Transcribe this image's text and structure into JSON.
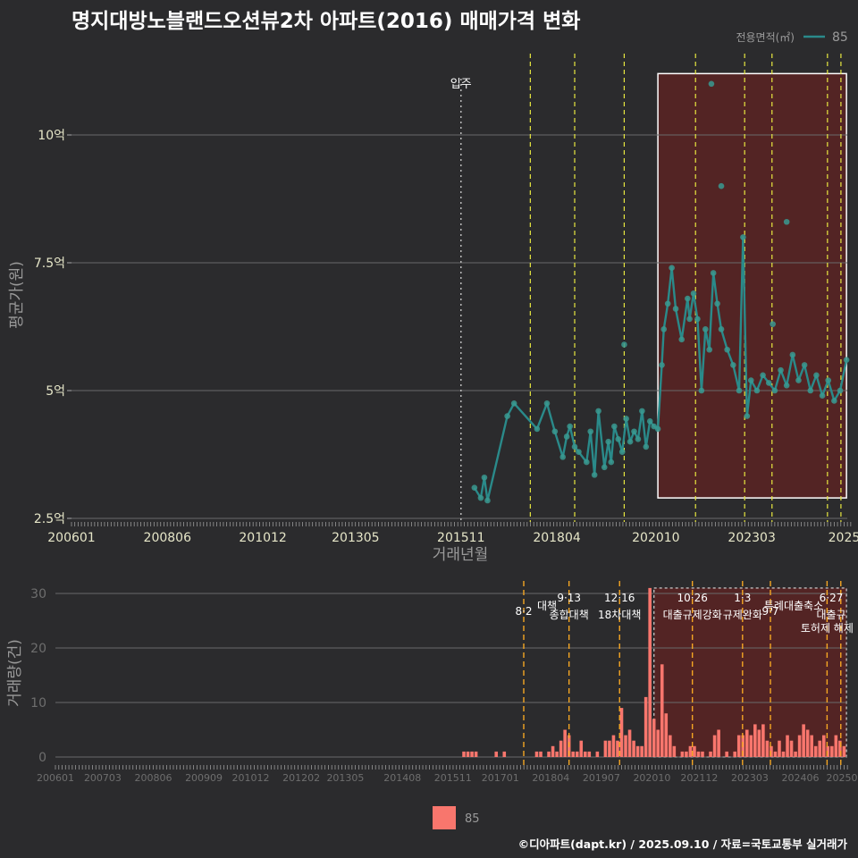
{
  "page": {
    "title": "명지대방노블랜드오션뷰2차 아파트(2016) 매매가격 변화",
    "credit": "©디아파트(dapt.kr) / 2025.09.10 / 자료=국토교통부 실거래가"
  },
  "colors": {
    "background": "#2b2b2d",
    "price_line": "#2a8a8a",
    "price_point": "#3a9990",
    "volume_bar": "#f8766d",
    "highlight_fill": "#5a2323",
    "policy_line_top": "#e8e840",
    "policy_line_bottom": "#f5a623",
    "move_in_line": "#bbbbbb"
  },
  "chart_data": [
    {
      "type": "line",
      "name": "price",
      "ylabel": "평균가(원)",
      "xlabel": "거래년월",
      "ylim": [
        2.5,
        11.3
      ],
      "xlim": [
        2006.0,
        2025.58
      ],
      "y_ticks": [
        {
          "value": 2.5,
          "label": "2.5억"
        },
        {
          "value": 5,
          "label": "5억"
        },
        {
          "value": 7.5,
          "label": "7.5억"
        },
        {
          "value": 10,
          "label": "10억"
        }
      ],
      "x_ticks": [
        {
          "value": 2006.0,
          "label": "200601"
        },
        {
          "value": 2008.42,
          "label": "200806"
        },
        {
          "value": 2010.83,
          "label": "201012"
        },
        {
          "value": 2013.17,
          "label": "201305"
        },
        {
          "value": 2015.83,
          "label": "201511"
        },
        {
          "value": 2018.25,
          "label": "201804"
        },
        {
          "value": 2020.75,
          "label": "202010"
        },
        {
          "value": 2023.17,
          "label": "202303"
        },
        {
          "value": 2025.5,
          "label": "2025"
        }
      ],
      "legend": {
        "title": "전용면적(㎡)",
        "label": "85",
        "position": "top-right"
      },
      "move_in": {
        "x": 2015.83,
        "label": "입주"
      },
      "policy_lines": [
        2017.58,
        2018.7,
        2019.95,
        2021.75,
        2022.99,
        2023.68,
        2025.08,
        2025.42
      ],
      "highlight": {
        "x0": 2020.8,
        "x1": 2025.56,
        "y0": 2.9,
        "y1": 11.2
      },
      "series": [
        {
          "name": "85",
          "points": [
            [
              2016.17,
              3.1
            ],
            [
              2016.33,
              2.9
            ],
            [
              2016.42,
              3.3
            ],
            [
              2016.5,
              2.85
            ],
            [
              2017.0,
              4.5
            ],
            [
              2017.17,
              4.75
            ],
            [
              2017.75,
              4.25
            ],
            [
              2018.0,
              4.75
            ],
            [
              2018.2,
              4.2
            ],
            [
              2018.4,
              3.7
            ],
            [
              2018.5,
              4.1
            ],
            [
              2018.58,
              4.3
            ],
            [
              2018.7,
              3.9
            ],
            [
              2018.8,
              3.8
            ],
            [
              2019.0,
              3.6
            ],
            [
              2019.1,
              4.2
            ],
            [
              2019.2,
              3.35
            ],
            [
              2019.3,
              4.6
            ],
            [
              2019.45,
              3.5
            ],
            [
              2019.55,
              4.0
            ],
            [
              2019.62,
              3.6
            ],
            [
              2019.7,
              4.3
            ],
            [
              2019.8,
              4.05
            ],
            [
              2019.9,
              3.8
            ],
            [
              2020.0,
              4.45
            ],
            [
              2020.1,
              4.0
            ],
            [
              2020.2,
              4.2
            ],
            [
              2020.3,
              4.05
            ],
            [
              2020.4,
              4.6
            ],
            [
              2020.5,
              3.9
            ],
            [
              2020.6,
              4.4
            ],
            [
              2020.7,
              4.3
            ],
            [
              2020.8,
              4.25
            ],
            [
              2020.9,
              5.5
            ],
            [
              2020.95,
              6.2
            ],
            [
              2021.05,
              6.7
            ],
            [
              2021.15,
              7.4
            ],
            [
              2021.25,
              6.6
            ],
            [
              2021.4,
              6.0
            ],
            [
              2021.55,
              6.8
            ],
            [
              2021.6,
              6.4
            ],
            [
              2021.7,
              6.9
            ],
            [
              2021.8,
              6.4
            ],
            [
              2021.9,
              5.0
            ],
            [
              2022.0,
              6.2
            ],
            [
              2022.1,
              5.8
            ],
            [
              2022.2,
              7.3
            ],
            [
              2022.3,
              6.7
            ],
            [
              2022.4,
              6.2
            ],
            [
              2022.55,
              5.8
            ],
            [
              2022.7,
              5.5
            ],
            [
              2022.85,
              5.0
            ],
            [
              2022.95,
              8.0
            ],
            [
              2023.05,
              4.5
            ],
            [
              2023.15,
              5.2
            ],
            [
              2023.3,
              5.0
            ],
            [
              2023.45,
              5.3
            ],
            [
              2023.6,
              5.15
            ],
            [
              2023.75,
              5.0
            ],
            [
              2023.9,
              5.4
            ],
            [
              2024.05,
              5.1
            ],
            [
              2024.2,
              5.7
            ],
            [
              2024.35,
              5.2
            ],
            [
              2024.5,
              5.5
            ],
            [
              2024.65,
              5.0
            ],
            [
              2024.8,
              5.3
            ],
            [
              2024.95,
              4.9
            ],
            [
              2025.1,
              5.2
            ],
            [
              2025.25,
              4.8
            ],
            [
              2025.4,
              5.0
            ],
            [
              2025.56,
              5.6
            ]
          ],
          "outliers": [
            [
              2022.15,
              11.0
            ],
            [
              2022.4,
              9.0
            ],
            [
              2024.05,
              8.3
            ],
            [
              2019.95,
              5.9
            ],
            [
              2023.7,
              6.3
            ]
          ]
        }
      ]
    },
    {
      "type": "bar",
      "name": "volume",
      "ylabel": "거래량(건)",
      "ylim": [
        0,
        32
      ],
      "y_ticks": [
        {
          "value": 0,
          "label": "0"
        },
        {
          "value": 10,
          "label": "10"
        },
        {
          "value": 20,
          "label": "20"
        },
        {
          "value": 30,
          "label": "30"
        }
      ],
      "x_ticks": [
        {
          "value": 2006.0,
          "label": "200601"
        },
        {
          "value": 2007.17,
          "label": "200703"
        },
        {
          "value": 2008.42,
          "label": "200806"
        },
        {
          "value": 2009.67,
          "label": "200909"
        },
        {
          "value": 2010.83,
          "label": "201012"
        },
        {
          "value": 2012.08,
          "label": "201202"
        },
        {
          "value": 2013.17,
          "label": "201305"
        },
        {
          "value": 2014.58,
          "label": "201408"
        },
        {
          "value": 2015.83,
          "label": "201511"
        },
        {
          "value": 2017.0,
          "label": "201701"
        },
        {
          "value": 2018.25,
          "label": "201804"
        },
        {
          "value": 2019.5,
          "label": "201907"
        },
        {
          "value": 2020.75,
          "label": "202010"
        },
        {
          "value": 2021.92,
          "label": "202112"
        },
        {
          "value": 2023.17,
          "label": "202303"
        },
        {
          "value": 2024.42,
          "label": "202406"
        },
        {
          "value": 2025.58,
          "label": "20250"
        }
      ],
      "legend": {
        "label": "85",
        "position": "bottom"
      },
      "policy_lines": [
        2017.58,
        2018.7,
        2019.95,
        2021.75,
        2022.99,
        2023.68,
        2025.08,
        2025.42
      ],
      "highlight": {
        "x0": 2020.8,
        "x1": 2025.56,
        "y0": 0,
        "y1": 31
      },
      "annotations": [
        {
          "x": 2017.58,
          "date": "8·2",
          "label": "대책",
          "row": 2
        },
        {
          "x": 2018.7,
          "date": "9·13",
          "label": "종합대책",
          "row": 1
        },
        {
          "x": 2019.95,
          "date": "12·16",
          "label": "18차대책",
          "row": 1
        },
        {
          "x": 2021.75,
          "date": "10·26",
          "label": "대출규제강화",
          "row": 1
        },
        {
          "x": 2022.99,
          "date": "1·3",
          "label": "규제완화",
          "row": 1
        },
        {
          "x": 2023.68,
          "date": "9·7",
          "label": "특례대출축소",
          "row": 2
        },
        {
          "x": 2025.08,
          "date": "",
          "label": "토허제 해제",
          "row": 2
        },
        {
          "x": 2025.42,
          "date": "6·27",
          "label": "대출규",
          "row": 1
        }
      ],
      "series": [
        {
          "name": "85",
          "bars": [
            [
              2016.1,
              1
            ],
            [
              2016.2,
              1
            ],
            [
              2016.3,
              1
            ],
            [
              2016.4,
              1
            ],
            [
              2016.9,
              1
            ],
            [
              2017.1,
              1
            ],
            [
              2017.9,
              1
            ],
            [
              2018.0,
              1
            ],
            [
              2018.2,
              1
            ],
            [
              2018.3,
              2
            ],
            [
              2018.4,
              1
            ],
            [
              2018.5,
              3
            ],
            [
              2018.6,
              5
            ],
            [
              2018.7,
              4
            ],
            [
              2018.8,
              1
            ],
            [
              2018.9,
              1
            ],
            [
              2019.0,
              3
            ],
            [
              2019.1,
              1
            ],
            [
              2019.2,
              1
            ],
            [
              2019.4,
              1
            ],
            [
              2019.6,
              3
            ],
            [
              2019.7,
              3
            ],
            [
              2019.8,
              4
            ],
            [
              2019.9,
              3
            ],
            [
              2020.0,
              9
            ],
            [
              2020.1,
              4
            ],
            [
              2020.2,
              5
            ],
            [
              2020.3,
              3
            ],
            [
              2020.4,
              2
            ],
            [
              2020.5,
              2
            ],
            [
              2020.6,
              11
            ],
            [
              2020.7,
              31
            ],
            [
              2020.8,
              7
            ],
            [
              2020.9,
              5
            ],
            [
              2021.0,
              17
            ],
            [
              2021.1,
              8
            ],
            [
              2021.2,
              4
            ],
            [
              2021.3,
              2
            ],
            [
              2021.5,
              1
            ],
            [
              2021.6,
              1
            ],
            [
              2021.7,
              2
            ],
            [
              2021.8,
              2
            ],
            [
              2021.9,
              1
            ],
            [
              2022.0,
              1
            ],
            [
              2022.2,
              1
            ],
            [
              2022.3,
              4
            ],
            [
              2022.4,
              5
            ],
            [
              2022.6,
              1
            ],
            [
              2022.8,
              1
            ],
            [
              2022.9,
              4
            ],
            [
              2023.0,
              4
            ],
            [
              2023.1,
              5
            ],
            [
              2023.2,
              4
            ],
            [
              2023.3,
              6
            ],
            [
              2023.4,
              5
            ],
            [
              2023.5,
              6
            ],
            [
              2023.6,
              3
            ],
            [
              2023.7,
              2
            ],
            [
              2023.8,
              1
            ],
            [
              2023.9,
              3
            ],
            [
              2024.0,
              1
            ],
            [
              2024.1,
              4
            ],
            [
              2024.2,
              3
            ],
            [
              2024.3,
              1
            ],
            [
              2024.4,
              4
            ],
            [
              2024.5,
              6
            ],
            [
              2024.6,
              5
            ],
            [
              2024.7,
              4
            ],
            [
              2024.8,
              2
            ],
            [
              2024.9,
              3
            ],
            [
              2025.0,
              4
            ],
            [
              2025.1,
              2
            ],
            [
              2025.2,
              2
            ],
            [
              2025.3,
              4
            ],
            [
              2025.4,
              3
            ],
            [
              2025.5,
              2
            ]
          ]
        }
      ]
    }
  ]
}
